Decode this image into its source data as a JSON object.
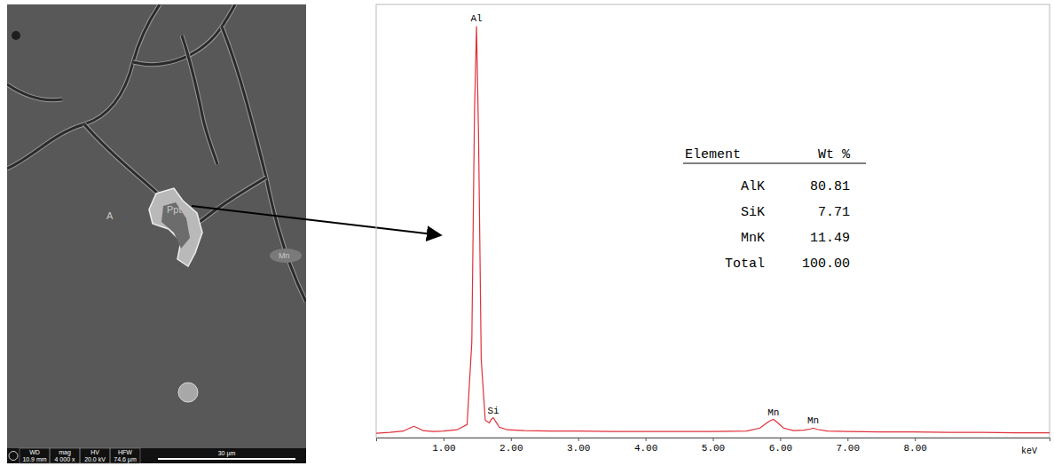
{
  "micrograph": {
    "labels": [
      {
        "text": "A"
      },
      {
        "text": "Ppt"
      },
      {
        "text": "Mn"
      }
    ],
    "info_bar": [
      {
        "name": "WD",
        "value": "10.9 mm"
      },
      {
        "name": "mag",
        "value": "4 000 x"
      },
      {
        "name": "HV",
        "value": "20.0 kV"
      },
      {
        "name": "HFW",
        "value": "74.6 µm"
      }
    ],
    "scale_bar": "30 µm"
  },
  "chart_data": {
    "type": "line",
    "color": "#e0303a",
    "grid": false,
    "tick_labels": "x",
    "xlabel": "keV",
    "x": [
      0.0,
      0.2,
      0.4,
      0.5,
      0.56,
      0.62,
      0.7,
      0.85,
      1.0,
      1.2,
      1.35,
      1.42,
      1.46,
      1.49,
      1.52,
      1.56,
      1.62,
      1.68,
      1.71,
      1.74,
      1.77,
      1.83,
      1.95,
      2.2,
      2.6,
      3.0,
      3.5,
      4.0,
      4.5,
      5.0,
      5.5,
      5.7,
      5.8,
      5.85,
      5.9,
      5.95,
      6.05,
      6.2,
      6.35,
      6.45,
      6.49,
      6.55,
      6.7,
      7.0,
      7.5,
      8.0,
      8.5,
      9.0,
      9.5,
      10.0
    ],
    "values": [
      1.0,
      1.2,
      1.5,
      2.2,
      2.6,
      2.2,
      1.6,
      1.4,
      1.5,
      1.8,
      3.0,
      22,
      75,
      95,
      70,
      18,
      4.0,
      3.4,
      4.2,
      4.6,
      3.8,
      2.4,
      1.8,
      1.6,
      1.5,
      1.5,
      1.4,
      1.4,
      1.4,
      1.4,
      1.5,
      2.2,
      3.4,
      3.9,
      4.2,
      3.6,
      2.2,
      1.6,
      1.7,
      2.0,
      2.2,
      1.9,
      1.5,
      1.4,
      1.3,
      1.3,
      1.2,
      1.2,
      1.1,
      1.1
    ],
    "xlim": [
      0,
      10
    ],
    "ylim": [
      0,
      100
    ],
    "xticks": [
      {
        "value": 1,
        "label": "1.00"
      },
      {
        "value": 2,
        "label": "2.00"
      },
      {
        "value": 3,
        "label": "3.00"
      },
      {
        "value": 4,
        "label": "4.00"
      },
      {
        "value": 5,
        "label": "5.00"
      },
      {
        "value": 6,
        "label": "6.00"
      },
      {
        "value": 7,
        "label": "7.00"
      },
      {
        "value": 8,
        "label": "8.00"
      }
    ],
    "annotations": [
      {
        "text": "Al",
        "x": 1.49
      },
      {
        "text": "Si",
        "x": 1.74
      },
      {
        "text": "Mn",
        "x": 5.9
      },
      {
        "text": "Mn",
        "x": 6.49
      }
    ]
  },
  "table": {
    "columns": [
      "Element",
      "Wt %"
    ],
    "rows": [
      [
        "AlK",
        "80.81"
      ],
      [
        "SiK",
        "7.71"
      ],
      [
        "MnK",
        "11.49"
      ],
      [
        "Total",
        "100.00"
      ]
    ]
  }
}
